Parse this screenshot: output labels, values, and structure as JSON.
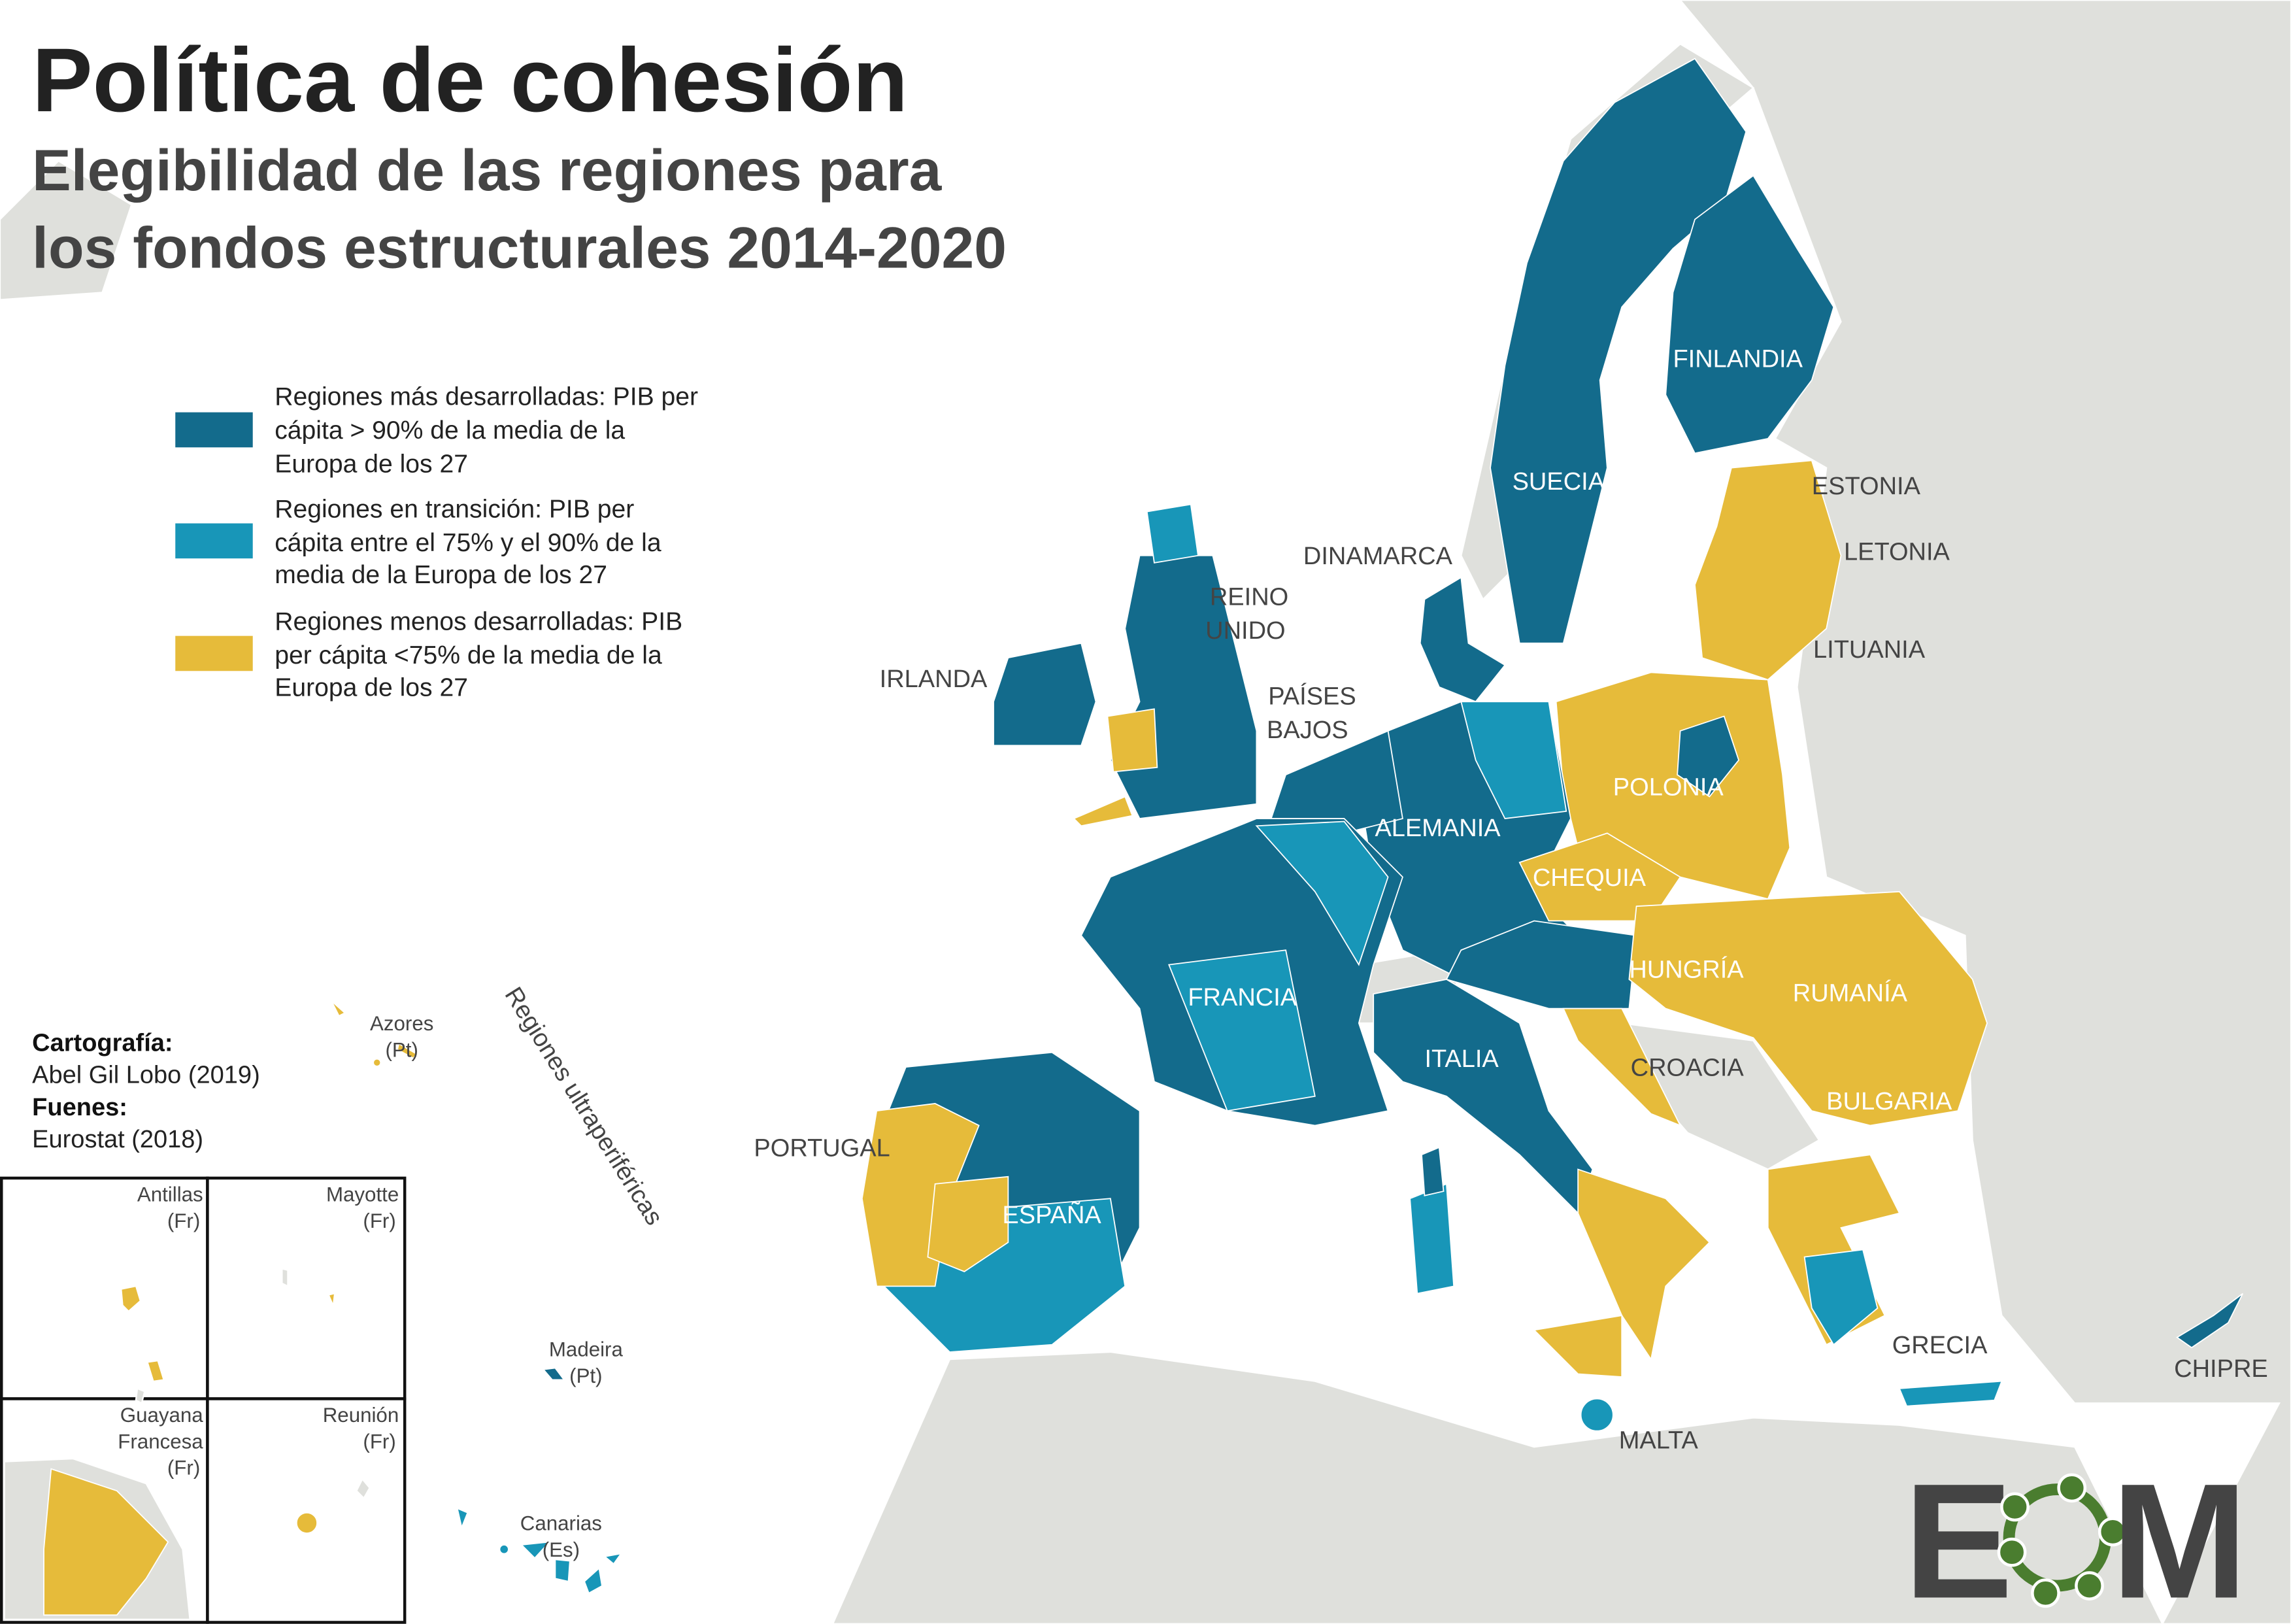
{
  "title": "Política de cohesión",
  "subtitle_line1": "Elegibilidad de las regiones para",
  "subtitle_line2": "los fondos estructurales 2014-2020",
  "colors": {
    "more_developed": "#136b8c",
    "transition": "#1896b8",
    "less_developed": "#e6bb3a",
    "non_eu": "#dfe0dc",
    "logo_green": "#4a7d2f",
    "logo_dark": "#444444"
  },
  "legend": [
    {
      "category": "more_developed",
      "lines": [
        "Regiones más desarrolladas: PIB per",
        "cápita > 90% de la media de la",
        "Europa de los 27"
      ]
    },
    {
      "category": "transition",
      "lines": [
        "Regiones en transición: PIB per",
        "cápita entre el 75% y el 90% de la",
        "media de la Europa de los 27"
      ]
    },
    {
      "category": "less_developed",
      "lines": [
        "Regiones menos desarrolladas: PIB",
        "per cápita <75% de la media de la",
        "Europa de los 27"
      ]
    }
  ],
  "credits": {
    "cartography_label": "Cartografía:",
    "cartography_value": "Abel Gil Lobo (2019)",
    "sources_label": "Fuenes:",
    "sources_value": "Eurostat (2018)"
  },
  "outermost_label": "Regiones ultraperiféricas",
  "outermost": {
    "azores": [
      "Azores",
      "(Pt)"
    ],
    "madeira": [
      "Madeira",
      "(Pt)"
    ],
    "canarias": [
      "Canarias",
      "(Es)"
    ],
    "antillas": [
      "Antillas",
      "(Fr)"
    ],
    "mayotte": [
      "Mayotte",
      "(Fr)"
    ],
    "guayana": [
      "Guayana",
      "Francesa",
      "(Fr)"
    ],
    "reunion": [
      "Reunión",
      "(Fr)"
    ]
  },
  "countries": {
    "finlandia": "FINLANDIA",
    "suecia": "SUECIA",
    "estonia": "ESTONIA",
    "letonia": "LETONIA",
    "lituania": "LITUANIA",
    "dinamarca": "DINAMARCA",
    "reino_unido": [
      "REINO",
      "UNIDO"
    ],
    "irlanda": "IRLANDA",
    "paises_bajos": [
      "PAÍSES",
      "BAJOS"
    ],
    "polonia": "POLONIA",
    "alemania": "ALEMANIA",
    "chequia": "CHEQUIA",
    "francia": "FRANCIA",
    "hungria": "HUNGRÍA",
    "rumania": "RUMANÍA",
    "italia": "ITALIA",
    "croacia": "CROACIA",
    "bulgaria": "BULGARIA",
    "portugal": "PORTUGAL",
    "espana": "ESPAÑA",
    "grecia": "GRECIA",
    "chipre": "CHIPRE",
    "malta": "MALTA"
  },
  "logo": {
    "text_left": "E",
    "text_right": "M"
  }
}
